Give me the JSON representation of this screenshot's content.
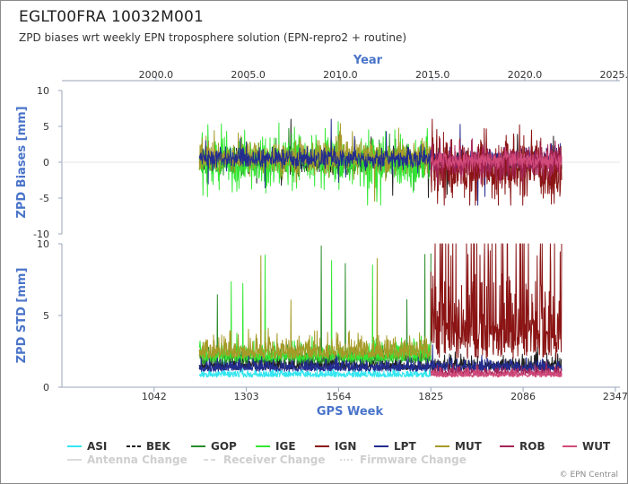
{
  "header": {
    "title": "EGLT00FRA 10032M001",
    "subtitle": "ZPD biases wrt weekly EPN troposphere solution (EPN-repro2 + routine)",
    "credits": "© EPN Central"
  },
  "chart_data": [
    {
      "type": "line",
      "ylabel": "ZPD Biases [mm]",
      "ylim": [
        -10,
        10
      ],
      "yticks": [
        "10",
        "5",
        "0",
        "-5",
        "-10"
      ],
      "x2label": "Year",
      "x2ticks": [
        "2000.0",
        "2005.0",
        "2010.0",
        "2015.0",
        "2020.0",
        "2025.0"
      ],
      "x_range_gps_week": [
        1170,
        2195
      ],
      "series": [
        {
          "name": "BEK",
          "color": "#1f1f1f",
          "level": 0.1,
          "noise": 0.7
        },
        {
          "name": "GOP",
          "color": "#2a8c2a",
          "level": 0.2,
          "noise": 0.9
        },
        {
          "name": "IGE",
          "color": "#33e833",
          "level": 0.0,
          "noise": 1.8
        },
        {
          "name": "MUT",
          "color": "#a69a28",
          "level": 0.8,
          "noise": 1.2
        },
        {
          "name": "LPT",
          "color": "#232c8f",
          "level": 0.5,
          "noise": 0.7
        },
        {
          "name": "IGN",
          "color": "#8b1414",
          "level": -1.0,
          "noise": 2.2
        },
        {
          "name": "ROB",
          "color": "#a32457",
          "level": 0.0,
          "noise": 1.2
        },
        {
          "name": "WUT",
          "color": "#d14a7a",
          "level": 0.3,
          "noise": 0.6
        }
      ]
    },
    {
      "type": "line",
      "ylabel": "ZPD STD [mm]",
      "ylim": [
        0,
        10
      ],
      "yticks": [
        "10",
        "5",
        "0"
      ],
      "xlabel": "GPS Week",
      "xticks": [
        "1042",
        "1303",
        "1564",
        "1825",
        "2086",
        "2347"
      ],
      "xlim": [
        781,
        2360
      ],
      "series": [
        {
          "name": "ASI",
          "color": "#33e6f0",
          "level": 0.7
        },
        {
          "name": "BEK",
          "color": "#1f1f1f",
          "level": 1.2
        },
        {
          "name": "GOP",
          "color": "#2a8c2a",
          "level": 1.6
        },
        {
          "name": "IGE",
          "color": "#33e833",
          "level": 1.8
        },
        {
          "name": "MUT",
          "color": "#a69a28",
          "level": 2.0
        },
        {
          "name": "LPT",
          "color": "#232c8f",
          "level": 1.1
        },
        {
          "name": "IGN",
          "color": "#8b1414",
          "level": 4.5
        },
        {
          "name": "ROB",
          "color": "#a32457",
          "level": 0.8
        },
        {
          "name": "WUT",
          "color": "#d14a7a",
          "level": 0.7
        }
      ]
    }
  ],
  "legend": {
    "items": [
      {
        "label": "ASI",
        "color": "#33e6f0",
        "style": "solid",
        "active": true
      },
      {
        "label": "BEK",
        "color": "#1f1f1f",
        "style": "dash",
        "active": true
      },
      {
        "label": "GOP",
        "color": "#2a8c2a",
        "style": "solid",
        "active": true
      },
      {
        "label": "IGE",
        "color": "#33e833",
        "style": "solid",
        "active": true
      },
      {
        "label": "IGN",
        "color": "#8b1414",
        "style": "solid",
        "active": true
      },
      {
        "label": "LPT",
        "color": "#232c8f",
        "style": "solid",
        "active": true
      },
      {
        "label": "MUT",
        "color": "#a69a28",
        "style": "solid",
        "active": true
      },
      {
        "label": "ROB",
        "color": "#a32457",
        "style": "solid",
        "active": true
      },
      {
        "label": "WUT",
        "color": "#d14a7a",
        "style": "solid",
        "active": true
      }
    ],
    "changes": [
      {
        "label": "Antenna Change",
        "style": "solid"
      },
      {
        "label": "Receiver Change",
        "style": "dash"
      },
      {
        "label": "Firmware Change",
        "style": "dot"
      }
    ]
  }
}
